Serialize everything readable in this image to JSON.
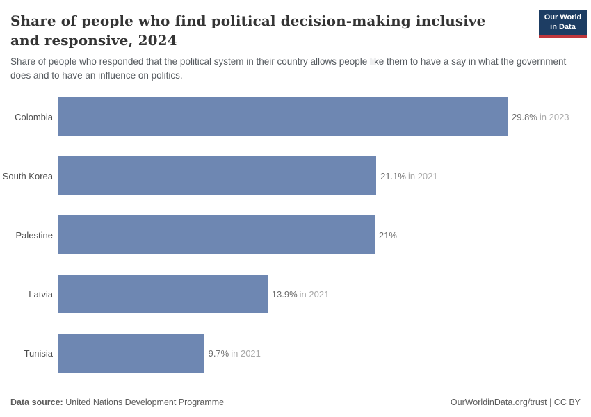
{
  "header": {
    "title": "Share of people who find political decision-making inclusive and responsive, 2024",
    "subtitle": "Share of people who responded that the political system in their country allows people like them to have a say in what the government does and to have an influence on politics.",
    "logo": {
      "line1": "Our World",
      "line2": "in Data",
      "bg_color": "#1d3d63",
      "accent_color": "#c0373c"
    }
  },
  "chart_data": {
    "type": "bar",
    "orientation": "horizontal",
    "title": "Share of people who find political decision-making inclusive and responsive, 2024",
    "categories": [
      "Colombia",
      "South Korea",
      "Palestine",
      "Latvia",
      "Tunisia"
    ],
    "values": [
      29.8,
      21.1,
      21,
      13.9,
      9.7
    ],
    "labels": [
      {
        "value": "29.8%",
        "year": "in 2023"
      },
      {
        "value": "21.1%",
        "year": "in 2021"
      },
      {
        "value": "21%",
        "year": ""
      },
      {
        "value": "13.9%",
        "year": "in 2021"
      },
      {
        "value": "9.7%",
        "year": "in 2021"
      }
    ],
    "unit": "%",
    "xlim": [
      0,
      29.8
    ],
    "bar_color": "#6e87b2",
    "grid": false,
    "legend": "none"
  },
  "footer": {
    "datasource_label": "Data source:",
    "datasource_value": "United Nations Development Programme",
    "attribution": "OurWorldinData.org/trust | CC BY"
  }
}
